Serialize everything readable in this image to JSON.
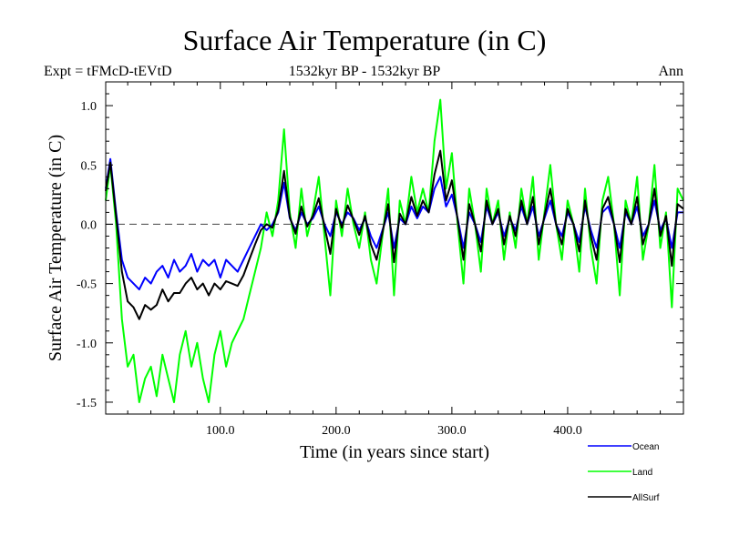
{
  "header": {
    "title": "Surface Air Temperature (in C)",
    "expt": "Expt = tFMcD-tEVtD",
    "period": "1532kyr BP - 1532kyr BP",
    "season": "Ann"
  },
  "chart_data": {
    "type": "line",
    "title": "Surface Air Temperature (in C)",
    "xlabel": "Time (in years since start)",
    "ylabel": "Surface Air Temperature (in C)",
    "xlim": [
      1,
      500
    ],
    "ylim": [
      -1.6,
      1.2
    ],
    "xticks": [
      100,
      200,
      300,
      400
    ],
    "xtick_labels": [
      "100.0",
      "200.0",
      "300.0",
      "400.0"
    ],
    "yticks": [
      1.0,
      0.5,
      0.0,
      -0.5,
      -1.0,
      -1.5
    ],
    "ytick_labels": [
      "1.0",
      "0.5",
      "0.0",
      "-0.5",
      "-1.0",
      "-1.5"
    ],
    "reference_line": 0.0,
    "series": [
      {
        "name": "Land",
        "color": "#00ff00",
        "x": [
          1,
          5,
          10,
          15,
          20,
          25,
          30,
          35,
          40,
          45,
          50,
          55,
          60,
          65,
          70,
          75,
          80,
          85,
          90,
          95,
          100,
          105,
          110,
          115,
          120,
          125,
          130,
          135,
          140,
          145,
          150,
          155,
          160,
          165,
          170,
          175,
          180,
          185,
          190,
          195,
          200,
          205,
          210,
          215,
          220,
          225,
          230,
          235,
          240,
          245,
          250,
          255,
          260,
          265,
          270,
          275,
          280,
          285,
          290,
          295,
          300,
          305,
          310,
          315,
          320,
          325,
          330,
          335,
          340,
          345,
          350,
          355,
          360,
          365,
          370,
          375,
          380,
          385,
          390,
          395,
          400,
          405,
          410,
          415,
          420,
          425,
          430,
          435,
          440,
          445,
          450,
          455,
          460,
          465,
          470,
          475,
          480,
          485,
          490,
          495,
          500
        ],
        "values": [
          0.2,
          0.5,
          0.0,
          -0.8,
          -1.2,
          -1.1,
          -1.5,
          -1.3,
          -1.2,
          -1.45,
          -1.1,
          -1.3,
          -1.5,
          -1.1,
          -0.9,
          -1.2,
          -1.0,
          -1.3,
          -1.5,
          -1.1,
          -0.9,
          -1.2,
          -1.0,
          -0.9,
          -0.8,
          -0.6,
          -0.4,
          -0.2,
          0.1,
          -0.1,
          0.2,
          0.8,
          0.1,
          -0.2,
          0.3,
          -0.1,
          0.1,
          0.4,
          -0.1,
          -0.6,
          0.2,
          -0.1,
          0.3,
          0.0,
          -0.2,
          0.1,
          -0.3,
          -0.5,
          -0.1,
          0.3,
          -0.6,
          0.2,
          0.0,
          0.4,
          0.1,
          0.3,
          0.1,
          0.7,
          1.05,
          0.3,
          0.6,
          0.0,
          -0.5,
          0.3,
          0.0,
          -0.4,
          0.3,
          0.0,
          0.2,
          -0.3,
          0.1,
          -0.2,
          0.3,
          0.0,
          0.4,
          -0.3,
          0.1,
          0.5,
          0.0,
          -0.3,
          0.2,
          0.0,
          -0.4,
          0.3,
          -0.2,
          -0.5,
          0.2,
          0.4,
          0.0,
          -0.6,
          0.2,
          0.0,
          0.4,
          -0.3,
          0.0,
          0.5,
          -0.2,
          0.1,
          -0.7,
          0.3,
          0.2
        ]
      },
      {
        "name": "Ocean",
        "color": "#0000ff",
        "x": [
          1,
          5,
          10,
          15,
          20,
          25,
          30,
          35,
          40,
          45,
          50,
          55,
          60,
          65,
          70,
          75,
          80,
          85,
          90,
          95,
          100,
          105,
          110,
          115,
          120,
          125,
          130,
          135,
          140,
          145,
          150,
          155,
          160,
          165,
          170,
          175,
          180,
          185,
          190,
          195,
          200,
          205,
          210,
          215,
          220,
          225,
          230,
          235,
          240,
          245,
          250,
          255,
          260,
          265,
          270,
          275,
          280,
          285,
          290,
          295,
          300,
          305,
          310,
          315,
          320,
          325,
          330,
          335,
          340,
          345,
          350,
          355,
          360,
          365,
          370,
          375,
          380,
          385,
          390,
          395,
          400,
          405,
          410,
          415,
          420,
          425,
          430,
          435,
          440,
          445,
          450,
          455,
          460,
          465,
          470,
          475,
          480,
          485,
          490,
          495,
          500
        ],
        "values": [
          0.3,
          0.55,
          0.1,
          -0.3,
          -0.45,
          -0.5,
          -0.55,
          -0.45,
          -0.5,
          -0.4,
          -0.35,
          -0.45,
          -0.3,
          -0.4,
          -0.35,
          -0.25,
          -0.4,
          -0.3,
          -0.35,
          -0.3,
          -0.45,
          -0.3,
          -0.35,
          -0.4,
          -0.3,
          -0.2,
          -0.1,
          0.0,
          -0.05,
          0.0,
          0.1,
          0.35,
          0.05,
          -0.05,
          0.1,
          0.0,
          0.05,
          0.15,
          0.0,
          -0.1,
          0.1,
          0.0,
          0.1,
          0.05,
          -0.05,
          0.05,
          -0.1,
          -0.2,
          -0.05,
          0.1,
          -0.2,
          0.05,
          0.0,
          0.15,
          0.05,
          0.15,
          0.1,
          0.3,
          0.4,
          0.15,
          0.25,
          0.05,
          -0.2,
          0.1,
          0.0,
          -0.15,
          0.15,
          0.0,
          0.1,
          -0.1,
          0.05,
          -0.05,
          0.15,
          0.0,
          0.15,
          -0.1,
          0.05,
          0.2,
          0.0,
          -0.1,
          0.1,
          0.0,
          -0.15,
          0.15,
          -0.05,
          -0.2,
          0.1,
          0.15,
          0.0,
          -0.2,
          0.1,
          0.0,
          0.15,
          -0.1,
          0.0,
          0.2,
          -0.05,
          0.05,
          -0.2,
          0.1,
          0.1
        ]
      },
      {
        "name": "AllSurf",
        "color": "#000000",
        "x": [
          1,
          5,
          10,
          15,
          20,
          25,
          30,
          35,
          40,
          45,
          50,
          55,
          60,
          65,
          70,
          75,
          80,
          85,
          90,
          95,
          100,
          105,
          110,
          115,
          120,
          125,
          130,
          135,
          140,
          145,
          150,
          155,
          160,
          165,
          170,
          175,
          180,
          185,
          190,
          195,
          200,
          205,
          210,
          215,
          220,
          225,
          230,
          235,
          240,
          245,
          250,
          255,
          260,
          265,
          270,
          275,
          280,
          285,
          290,
          295,
          300,
          305,
          310,
          315,
          320,
          325,
          330,
          335,
          340,
          345,
          350,
          355,
          360,
          365,
          370,
          375,
          380,
          385,
          390,
          395,
          400,
          405,
          410,
          415,
          420,
          425,
          430,
          435,
          440,
          445,
          450,
          455,
          460,
          465,
          470,
          475,
          480,
          485,
          490,
          495,
          500
        ],
        "values": [
          0.28,
          0.52,
          0.07,
          -0.4,
          -0.65,
          -0.7,
          -0.8,
          -0.68,
          -0.72,
          -0.68,
          -0.55,
          -0.65,
          -0.58,
          -0.58,
          -0.5,
          -0.45,
          -0.55,
          -0.5,
          -0.6,
          -0.5,
          -0.55,
          -0.48,
          -0.5,
          -0.52,
          -0.43,
          -0.3,
          -0.17,
          -0.05,
          0.0,
          -0.03,
          0.12,
          0.45,
          0.06,
          -0.08,
          0.15,
          -0.02,
          0.07,
          0.22,
          -0.02,
          -0.25,
          0.13,
          -0.03,
          0.16,
          0.04,
          -0.09,
          0.07,
          -0.17,
          -0.3,
          -0.07,
          0.17,
          -0.32,
          0.09,
          0.0,
          0.23,
          0.07,
          0.2,
          0.1,
          0.42,
          0.62,
          0.2,
          0.37,
          0.04,
          -0.3,
          0.17,
          0.0,
          -0.23,
          0.2,
          0.0,
          0.13,
          -0.17,
          0.07,
          -0.1,
          0.2,
          0.0,
          0.23,
          -0.17,
          0.07,
          0.3,
          0.0,
          -0.17,
          0.13,
          0.0,
          -0.23,
          0.2,
          -0.1,
          -0.3,
          0.13,
          0.23,
          0.0,
          -0.32,
          0.13,
          0.0,
          0.23,
          -0.17,
          0.0,
          0.3,
          -0.1,
          0.07,
          -0.35,
          0.17,
          0.13
        ]
      }
    ]
  }
}
